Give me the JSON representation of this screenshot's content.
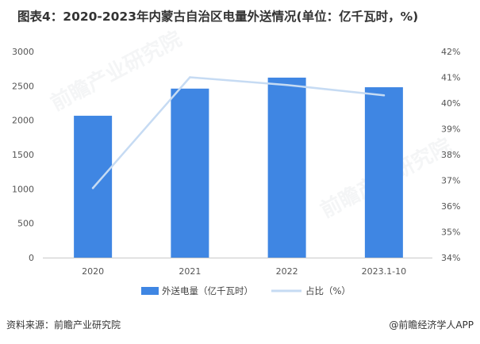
{
  "title": "图表4：2020-2023年内蒙古自治区电量外送情况(单位：亿千瓦时，%)",
  "watermark": "前瞻产业研究院",
  "source": "资料来源：前瞻产业研究院",
  "credit": "@前瞻经济学人APP",
  "chart_data": {
    "type": "bar",
    "categories": [
      "2020",
      "2021",
      "2022",
      "2023.1-10"
    ],
    "series": [
      {
        "name": "外送电量（亿千瓦时）",
        "type": "bar",
        "axis": "left",
        "values": [
          2065,
          2460,
          2620,
          2480
        ],
        "color": "#3f86e3"
      },
      {
        "name": "占比（%）",
        "type": "line",
        "axis": "right",
        "values": [
          36.7,
          41.0,
          40.7,
          40.3
        ],
        "color": "#c6dbf3"
      }
    ],
    "y_left": {
      "min": 0,
      "max": 3000,
      "ticks": [
        0,
        500,
        1000,
        1500,
        2000,
        2500,
        3000
      ]
    },
    "y_right": {
      "min": 34,
      "max": 42,
      "ticks": [
        34,
        35,
        36,
        37,
        38,
        39,
        40,
        41,
        42
      ],
      "unit": "%"
    },
    "grid": false,
    "legend": "bottom-center"
  }
}
